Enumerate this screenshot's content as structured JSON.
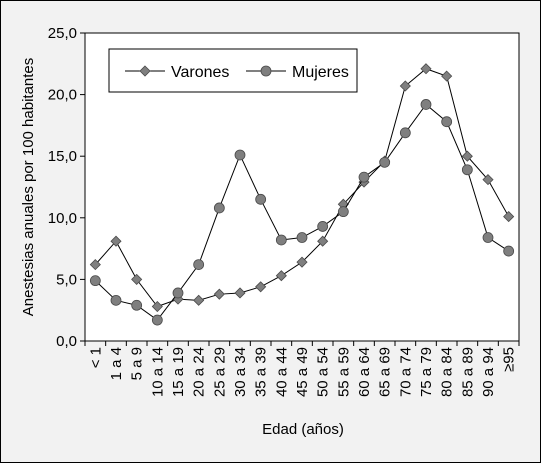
{
  "chart_data": {
    "type": "line",
    "xlabel": "Edad (años)",
    "ylabel": "Anestesias anuales por 100 habitantes",
    "ylim": [
      0,
      25
    ],
    "yticks": [
      "0,0",
      "5,0",
      "10,0",
      "15,0",
      "20,0",
      "25,0"
    ],
    "categories": [
      "< 1",
      "1 a 4",
      "5 a 9",
      "10 a 14",
      "15 a 19",
      "20 a 24",
      "25 a 29",
      "30 a 34",
      "35 a 39",
      "40 a 44",
      "45 a 49",
      "50 a 54",
      "55 a 59",
      "60 a 64",
      "65 a 69",
      "70 a 74",
      "75 a 79",
      "80 a 84",
      "85 a 89",
      "90 a 94",
      "≥95"
    ],
    "legend_position": "top-left",
    "grid": false,
    "series": [
      {
        "name": "Varones",
        "marker": "diamond",
        "values": [
          6.2,
          8.1,
          5.0,
          2.8,
          3.4,
          3.3,
          3.8,
          3.9,
          4.4,
          5.3,
          6.4,
          8.1,
          11.1,
          12.9,
          14.6,
          20.7,
          22.1,
          21.5,
          15.0,
          13.1,
          10.1
        ]
      },
      {
        "name": "Mujeres",
        "marker": "circle",
        "values": [
          4.9,
          3.3,
          2.9,
          1.7,
          3.9,
          6.2,
          10.8,
          15.1,
          11.5,
          8.2,
          8.4,
          9.3,
          10.5,
          13.3,
          14.5,
          16.9,
          19.2,
          17.8,
          13.9,
          8.4,
          7.3
        ]
      }
    ]
  }
}
